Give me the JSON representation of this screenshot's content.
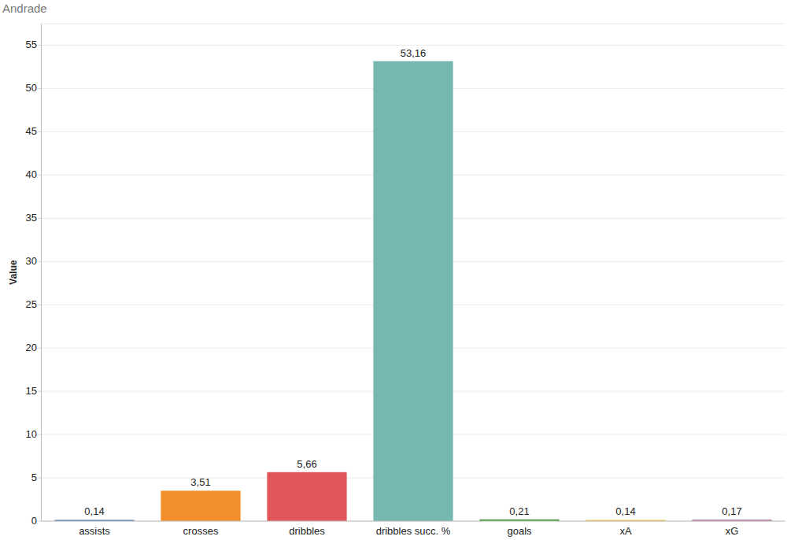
{
  "chart_data": {
    "type": "bar",
    "title": "Andrade",
    "y_label": "Value",
    "categories": [
      "assists",
      "crosses",
      "dribbles",
      "dribbles succ. %",
      "goals",
      "xA",
      "xG"
    ],
    "values": [
      0.14,
      3.51,
      5.66,
      53.16,
      0.21,
      0.14,
      0.17
    ],
    "value_labels": [
      "0,14",
      "3,51",
      "5,66",
      "53,16",
      "0,21",
      "0,14",
      "0,17"
    ],
    "colors": [
      "#4e79a7",
      "#f28e2b",
      "#e15759",
      "#76b7b2",
      "#59a14f",
      "#edc948",
      "#b07aa1"
    ],
    "ylim": [
      0,
      57.5
    ],
    "yticks": [
      0,
      5,
      10,
      15,
      20,
      25,
      30,
      35,
      40,
      45,
      50,
      55
    ],
    "grid": true,
    "data_labels": true
  }
}
